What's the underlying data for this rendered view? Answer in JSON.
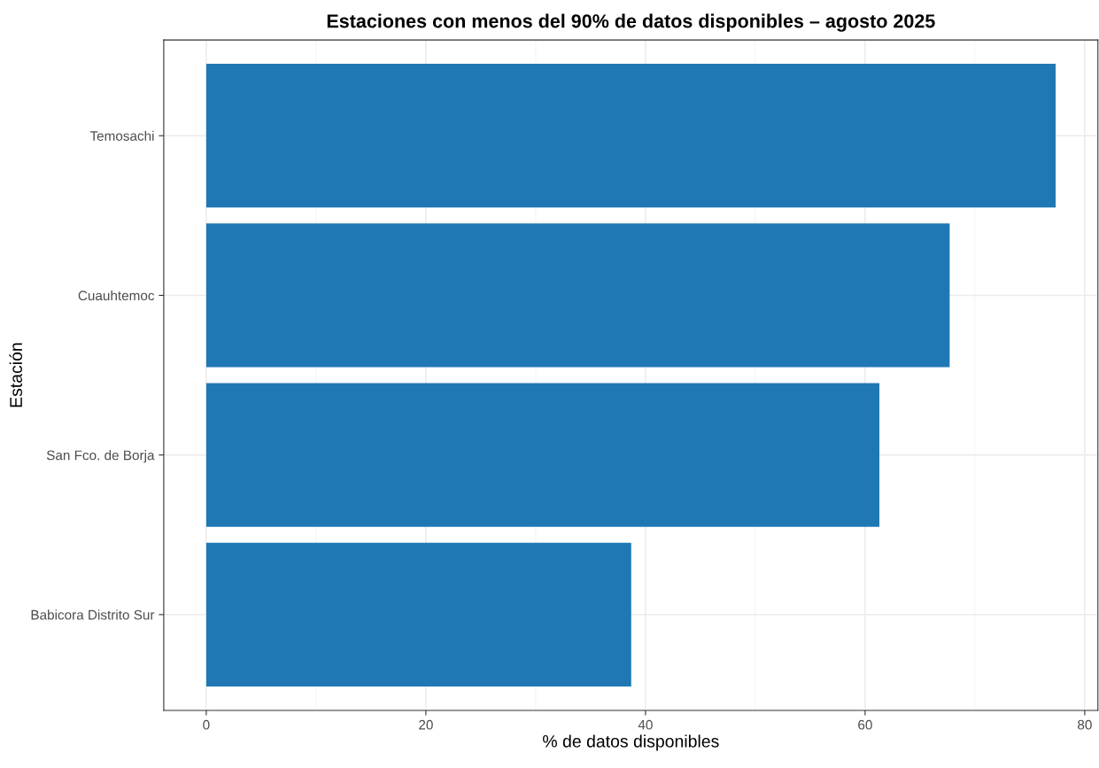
{
  "chart_data": {
    "type": "bar",
    "orientation": "horizontal",
    "title": "Estaciones con menos del 90% de datos disponibles – agosto 2025",
    "xlabel": "% de datos disponibles",
    "ylabel": "Estación",
    "categories": [
      "Temosachi",
      "Cuauhtemoc",
      "San Fco. de Borja",
      "Babicora Distrito Sur"
    ],
    "values": [
      77.35,
      67.7,
      61.3,
      38.7
    ],
    "color": "#1f78b4",
    "xlim": [
      -3.87,
      81.2
    ],
    "xticks": [
      0,
      20,
      40,
      60,
      80
    ],
    "grid": true,
    "legend": false
  }
}
